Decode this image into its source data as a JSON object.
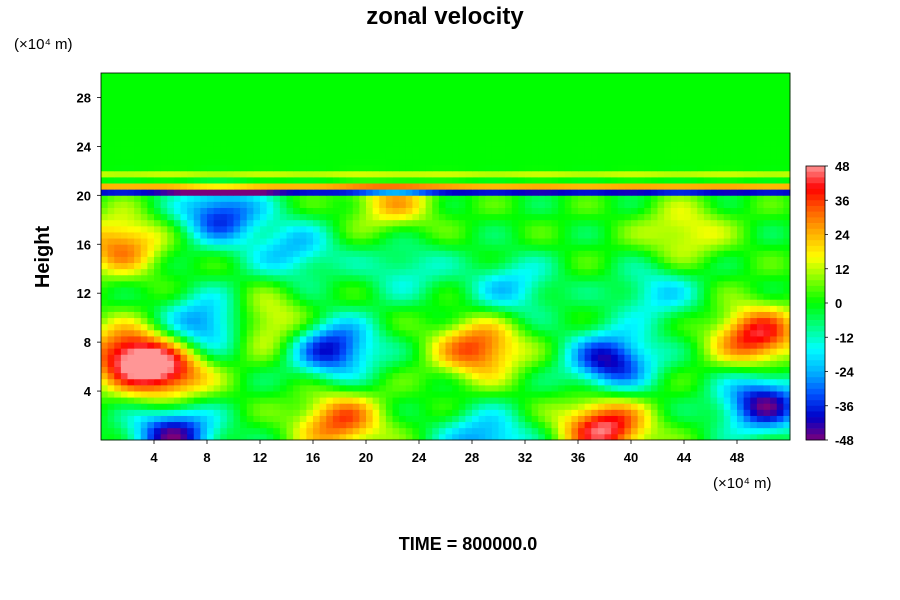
{
  "chart_data": {
    "type": "heatmap",
    "title": "zonal velocity",
    "ylabel": "Height",
    "xlabel": "",
    "x_unit": "(×10⁴ m)",
    "y_unit": "(×10⁴ m)",
    "xlim": [
      0,
      52
    ],
    "ylim": [
      0,
      30
    ],
    "x_ticks": [
      4,
      8,
      12,
      16,
      20,
      24,
      28,
      32,
      36,
      40,
      44,
      48
    ],
    "y_ticks": [
      4,
      8,
      12,
      16,
      20,
      24,
      28
    ],
    "colorbar": {
      "range": [
        -48,
        48
      ],
      "ticks": [
        48,
        36,
        24,
        12,
        0,
        -12,
        -24,
        -36,
        -48
      ],
      "colors": [
        "#7a007a",
        "#0000c8",
        "#0050ff",
        "#00b4ff",
        "#00ffff",
        "#00ff80",
        "#00ff00",
        "#80ff00",
        "#ffff00",
        "#ffb400",
        "#ff6400",
        "#ff0000",
        "#ff9696"
      ]
    },
    "features": [
      {
        "x": 2,
        "y": 7,
        "v": 42
      },
      {
        "x": 5,
        "y": 5.5,
        "v": 40
      },
      {
        "x": 1.5,
        "y": 16,
        "v": 30
      },
      {
        "x": 9,
        "y": 18.5,
        "v": -36
      },
      {
        "x": 8,
        "y": 9.5,
        "v": -32
      },
      {
        "x": 5.5,
        "y": 0.5,
        "v": -44
      },
      {
        "x": 17.5,
        "y": 7.5,
        "v": -40
      },
      {
        "x": 18,
        "y": 1.5,
        "v": 34
      },
      {
        "x": 14.5,
        "y": 15.5,
        "v": -22
      },
      {
        "x": 28.5,
        "y": 7.5,
        "v": 36
      },
      {
        "x": 29,
        "y": 0,
        "v": -28
      },
      {
        "x": 38.5,
        "y": 6.5,
        "v": -42
      },
      {
        "x": 38,
        "y": 1,
        "v": 46
      },
      {
        "x": 49.5,
        "y": 8.5,
        "v": 42
      },
      {
        "x": 50,
        "y": 3,
        "v": -44
      },
      {
        "x": 12.5,
        "y": 9.5,
        "v": 22
      },
      {
        "x": 22,
        "y": 19.5,
        "v": 22
      },
      {
        "x": 31,
        "y": 12.5,
        "v": -20
      },
      {
        "x": 42,
        "y": 12,
        "v": -18
      },
      {
        "x": 44,
        "y": 17,
        "v": 18
      },
      {
        "x": 23,
        "y": 14,
        "v": -14
      }
    ]
  },
  "footer": {
    "time_label": "TIME = 800000.0"
  }
}
